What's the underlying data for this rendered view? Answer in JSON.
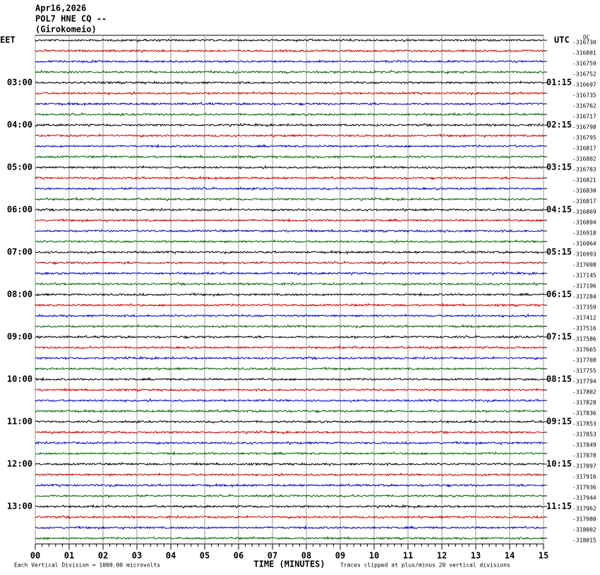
{
  "chart_data": {
    "type": "helicorder",
    "title": [
      "Apr16,2026",
      "POL7 HNE CQ --",
      "(Girokomeio)"
    ],
    "left_timezone": "EET",
    "right_timezone": "UTC",
    "offset_label": "DC",
    "trace_colors": [
      "#000000",
      "#d00000",
      "#0000c8",
      "#006400"
    ],
    "offsets": [
      -316730,
      -316801,
      -316759,
      -316752,
      -316697,
      -316735,
      -316762,
      -316717,
      -316798,
      -316795,
      -316817,
      -316802,
      -316783,
      -316821,
      -316830,
      -316817,
      -316869,
      -316894,
      -316918,
      -316964,
      -316993,
      -317098,
      -317145,
      -317196,
      -317284,
      -317359,
      -317412,
      -317516,
      -317586,
      -317665,
      -317708,
      -317755,
      -317794,
      -317802,
      -317828,
      -317836,
      -317853,
      -317853,
      -317849,
      -317878,
      -317897,
      -317916,
      -317936,
      -317944,
      -317962,
      -317980,
      -318002,
      -318015
    ],
    "hour_labels_left": [
      "03:00",
      "04:00",
      "05:00",
      "06:00",
      "07:00",
      "08:00",
      "09:00",
      "10:00",
      "11:00",
      "12:00",
      "13:00"
    ],
    "hour_labels_right": [
      "01:15",
      "02:15",
      "03:15",
      "04:15",
      "05:15",
      "06:15",
      "07:15",
      "08:15",
      "09:15",
      "10:15",
      "11:15"
    ],
    "x_label": "TIME (MINUTES)",
    "xlim": [
      0,
      15
    ],
    "xticks": [
      {
        "value": 0,
        "label": "00"
      },
      {
        "value": 1,
        "label": "01"
      },
      {
        "value": 2,
        "label": "02"
      },
      {
        "value": 3,
        "label": "03"
      },
      {
        "value": 4,
        "label": "04"
      },
      {
        "value": 5,
        "label": "05"
      },
      {
        "value": 6,
        "label": "06"
      },
      {
        "value": 7,
        "label": "07"
      },
      {
        "value": 8,
        "label": "08"
      },
      {
        "value": 9,
        "label": "09"
      },
      10,
      11,
      12,
      13,
      14,
      15
    ],
    "footer_left": "Each Vertical Division = 1000.00 microvolts",
    "footer_right": "Traces clipped at plus/minus 20 vertical divisions"
  }
}
